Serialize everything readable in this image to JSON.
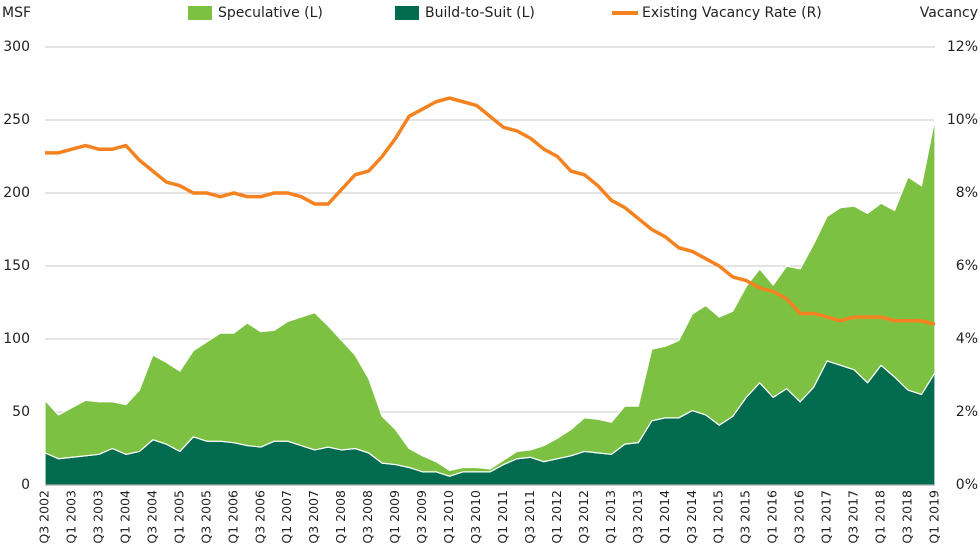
{
  "chart_data": {
    "type": "stacked-area-line",
    "categories": [
      "Q3 2002",
      null,
      "Q1 2003",
      null,
      "Q3 2003",
      null,
      "Q1 2004",
      null,
      "Q3 2004",
      null,
      "Q1 2005",
      null,
      "Q3 2005",
      null,
      "Q1 2006",
      null,
      "Q3 2006",
      null,
      "Q1 2007",
      null,
      "Q3 2007",
      null,
      "Q1 2008",
      null,
      "Q3 2008",
      null,
      "Q1 2009",
      null,
      "Q3 2009",
      null,
      "Q1 2010",
      null,
      "Q3 2010",
      null,
      "Q1 2011",
      null,
      "Q3 2011",
      null,
      "Q1 2012",
      null,
      "Q3 2012",
      null,
      "Q1 2013",
      null,
      "Q3 2013",
      null,
      "Q1 2014",
      null,
      "Q3 2014",
      null,
      "Q1 2015",
      null,
      "Q3 2015",
      null,
      "Q1 2016",
      null,
      "Q3 2016",
      null,
      "Q1 2017",
      null,
      "Q3 2017",
      null,
      "Q1 2018",
      null,
      "Q3 2018",
      null,
      "Q1 2019"
    ],
    "series": [
      {
        "name": "Speculative (L)",
        "color": "#7dc142",
        "kind": "area",
        "values": [
          36,
          30,
          34,
          38,
          36,
          32,
          34,
          42,
          58,
          56,
          55,
          59,
          68,
          74,
          75,
          84,
          79,
          76,
          82,
          88,
          94,
          83,
          75,
          64,
          51,
          32,
          24,
          13,
          11,
          7,
          4,
          3,
          3,
          2,
          3,
          5,
          5,
          11,
          14,
          18,
          23,
          23,
          22,
          26,
          25,
          49,
          49,
          53,
          66,
          75,
          74,
          72,
          76,
          78,
          77,
          84,
          91,
          98,
          99,
          108,
          112,
          116,
          111,
          114,
          146,
          143,
          174
        ]
      },
      {
        "name": "Build-to-Suit (L)",
        "color": "#006b4f",
        "kind": "area",
        "values": [
          22,
          18,
          19,
          20,
          21,
          25,
          21,
          23,
          31,
          28,
          23,
          33,
          30,
          30,
          29,
          27,
          26,
          30,
          30,
          27,
          24,
          26,
          24,
          25,
          22,
          15,
          14,
          12,
          9,
          9,
          6,
          9,
          9,
          9,
          14,
          18,
          19,
          16,
          18,
          20,
          23,
          22,
          21,
          28,
          29,
          44,
          46,
          46,
          51,
          48,
          41,
          47,
          60,
          70,
          60,
          66,
          57,
          67,
          85,
          82,
          79,
          70,
          82,
          74,
          65,
          62,
          77
        ]
      },
      {
        "name": "Existing Vacancy Rate (R)",
        "color": "#f58220",
        "kind": "line",
        "axis": "y2",
        "values": [
          9.1,
          9.1,
          9.2,
          9.3,
          9.2,
          9.2,
          9.3,
          8.9,
          8.6,
          8.3,
          8.2,
          8.0,
          8.0,
          7.9,
          8.0,
          7.9,
          7.9,
          8.0,
          8.0,
          7.9,
          7.7,
          7.7,
          8.1,
          8.5,
          8.6,
          9.0,
          9.5,
          10.1,
          10.3,
          10.5,
          10.6,
          10.5,
          10.4,
          10.1,
          9.8,
          9.7,
          9.5,
          9.2,
          9.0,
          8.6,
          8.5,
          8.2,
          7.8,
          7.6,
          7.3,
          7.0,
          6.8,
          6.5,
          6.4,
          6.2,
          6.0,
          5.7,
          5.6,
          5.4,
          5.3,
          5.1,
          4.7,
          4.7,
          4.6,
          4.5,
          4.6,
          4.6,
          4.6,
          4.5,
          4.5,
          4.5,
          4.4
        ]
      }
    ],
    "y_label": "MSF",
    "y2_label": "Vacancy",
    "ylim": [
      0,
      300
    ],
    "yticks": [
      0,
      50,
      100,
      150,
      200,
      250,
      300
    ],
    "y2lim": [
      0,
      12
    ],
    "y2ticks": [
      {
        "value": 0,
        "label": "0%"
      },
      {
        "value": 2,
        "label": "2%"
      },
      {
        "value": 4,
        "label": "4%"
      },
      {
        "value": 6,
        "label": "6%"
      },
      {
        "value": 8,
        "label": "8%"
      },
      {
        "value": 10,
        "label": "10%"
      },
      {
        "value": 12,
        "label": "12%"
      }
    ],
    "grid": true,
    "legend": "top"
  }
}
